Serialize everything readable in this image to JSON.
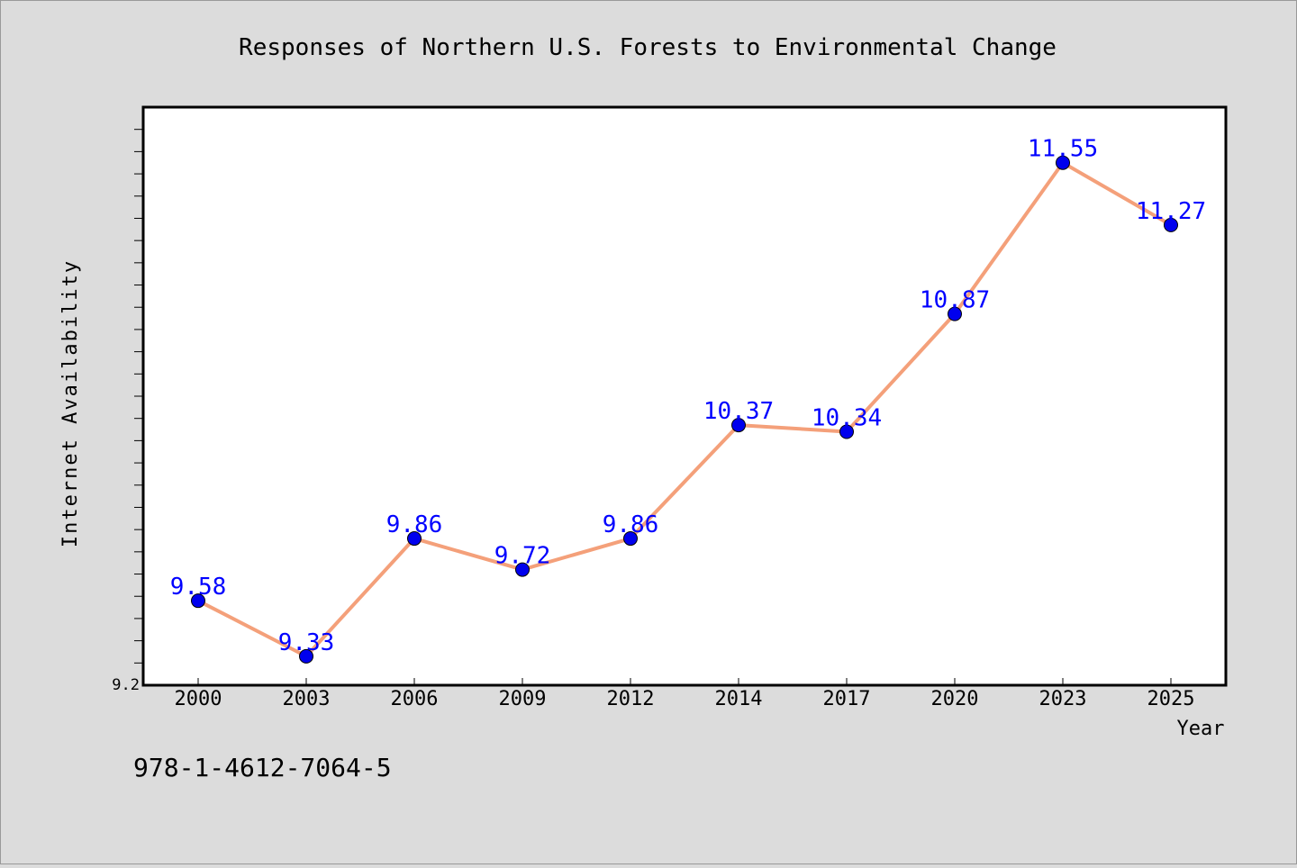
{
  "chart_data": {
    "type": "line",
    "title": "Responses of Northern U.S. Forests to Environmental Change",
    "xlabel": "Year",
    "ylabel": "Internet Availability",
    "categories": [
      "2000",
      "2003",
      "2006",
      "2009",
      "2012",
      "2014",
      "2017",
      "2020",
      "2023",
      "2025"
    ],
    "series": [
      {
        "values": [
          9.58,
          9.33,
          9.86,
          9.72,
          9.86,
          10.37,
          10.34,
          10.87,
          11.55,
          11.27
        ]
      }
    ],
    "data_labels": [
      "9.58",
      "9.33",
      "9.86",
      "9.72",
      "9.86",
      "10.37",
      "10.34",
      "10.87",
      "11.55",
      "11.27"
    ],
    "ytick_labels": [
      "9.2"
    ],
    "ylim": [
      9.2,
      11.8
    ],
    "y_minor_tick_step": 0.1,
    "grid": false,
    "line_color": "#f4a07a",
    "marker_color": "#0000ee",
    "label_color": "#0000ff",
    "plot_background": "#ffffff",
    "page_background": "#dcdcdc"
  },
  "footer": {
    "isbn": "978-1-4612-7064-5"
  }
}
